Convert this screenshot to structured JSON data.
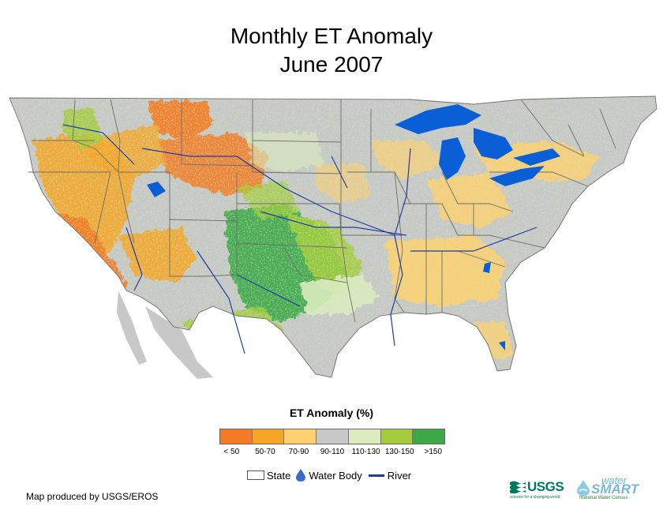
{
  "title": {
    "line1": "Monthly ET Anomaly",
    "line2": "June 2007"
  },
  "legend": {
    "title": "ET Anomaly (%)",
    "classes": [
      {
        "label": "< 50",
        "color": "#f57a26"
      },
      {
        "label": "50-70",
        "color": "#f7a526"
      },
      {
        "label": "70-90",
        "color": "#ffcf70"
      },
      {
        "label": "90-110",
        "color": "#c8c8c8"
      },
      {
        "label": "110-130",
        "color": "#dcebc0"
      },
      {
        "label": "130-150",
        "color": "#a4cc3c"
      },
      {
        "label": ">150",
        "color": "#3da84a"
      }
    ]
  },
  "key": {
    "state": "State",
    "water": "Water Body",
    "river": "River"
  },
  "credit": "Map produced by USGS/EROS",
  "logos": {
    "usgs": "USGS",
    "usgs_tagline": "science for a changing world",
    "water": "water",
    "smart": "SMART",
    "watersmart_tagline": "National Water Census"
  },
  "colors": {
    "water": "#0a5fd6",
    "river": "#1f3ca6",
    "state_line": "#6f6f6f",
    "background_land": "#c8c8c8"
  }
}
